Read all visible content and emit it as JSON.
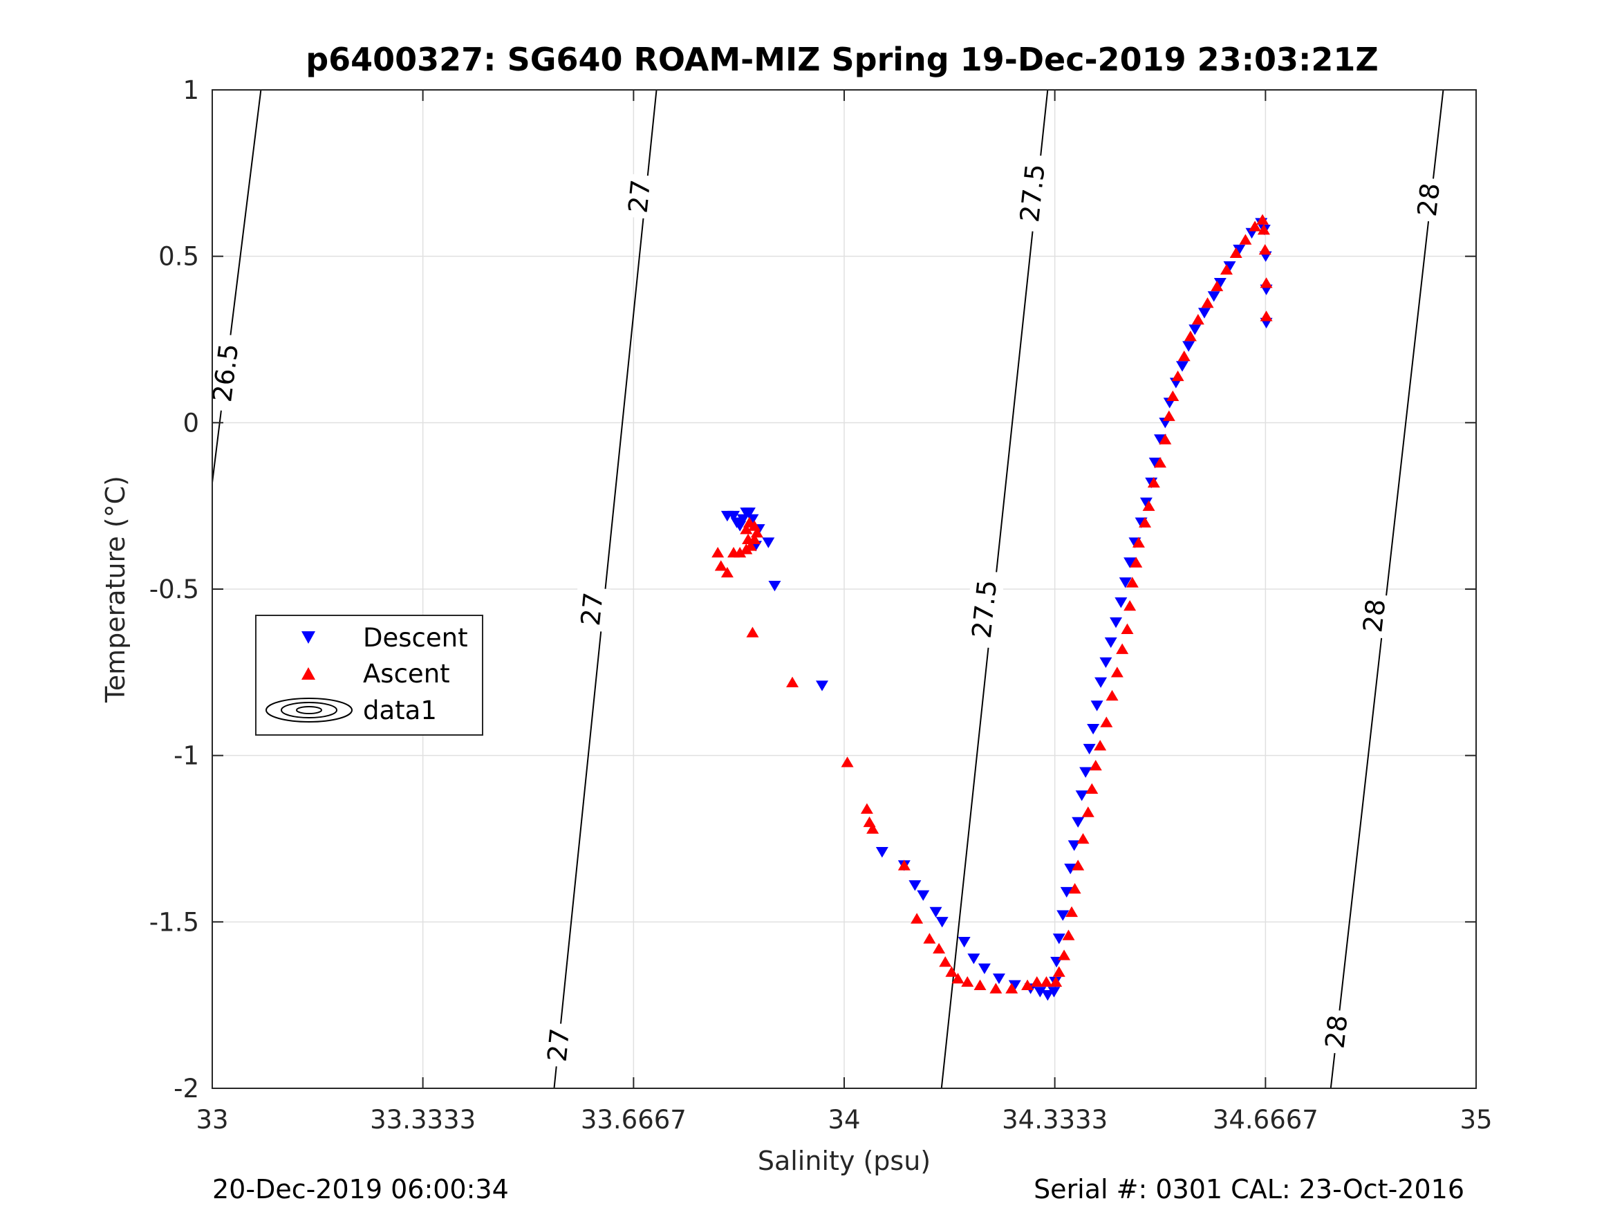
{
  "chart_data": {
    "type": "scatter",
    "title": "p6400327: SG640 ROAM-MIZ Spring 19-Dec-2019 23:03:21Z",
    "xlabel": "Salinity (psu)",
    "ylabel": "Temperature (°C)",
    "xlim": [
      33,
      35
    ],
    "ylim": [
      -2,
      1
    ],
    "xticks": [
      33,
      33.3333,
      33.6667,
      34,
      34.3333,
      34.6667,
      35
    ],
    "xtick_labels": [
      "33",
      "33.3333",
      "33.6667",
      "34",
      "34.3333",
      "34.6667",
      "35"
    ],
    "yticks": [
      -2,
      -1.5,
      -1,
      -0.5,
      0,
      0.5,
      1
    ],
    "ytick_labels": [
      "-2",
      "-1.5",
      "-1",
      "-0.5",
      "0",
      "0.5",
      "1"
    ],
    "grid": true,
    "legend_position": "left",
    "colors": {
      "descent": "#0000ff",
      "ascent": "#ff0000",
      "contour": "#000000",
      "grid": "#e0e0e0"
    },
    "series": [
      {
        "name": "Descent",
        "marker": "triangle-down",
        "points": [
          [
            34.668,
            0.3
          ],
          [
            34.668,
            0.4
          ],
          [
            34.667,
            0.5
          ],
          [
            34.665,
            0.58
          ],
          [
            34.66,
            0.6
          ],
          [
            34.645,
            0.57
          ],
          [
            34.625,
            0.52
          ],
          [
            34.61,
            0.47
          ],
          [
            34.595,
            0.42
          ],
          [
            34.585,
            0.38
          ],
          [
            34.57,
            0.33
          ],
          [
            34.555,
            0.28
          ],
          [
            34.545,
            0.23
          ],
          [
            34.535,
            0.17
          ],
          [
            34.525,
            0.12
          ],
          [
            34.515,
            0.06
          ],
          [
            34.508,
            0.0
          ],
          [
            34.5,
            -0.05
          ],
          [
            34.492,
            -0.12
          ],
          [
            34.486,
            -0.18
          ],
          [
            34.478,
            -0.24
          ],
          [
            34.47,
            -0.3
          ],
          [
            34.46,
            -0.36
          ],
          [
            34.452,
            -0.42
          ],
          [
            34.445,
            -0.48
          ],
          [
            34.438,
            -0.54
          ],
          [
            34.43,
            -0.6
          ],
          [
            34.422,
            -0.66
          ],
          [
            34.414,
            -0.72
          ],
          [
            34.406,
            -0.78
          ],
          [
            34.4,
            -0.85
          ],
          [
            34.394,
            -0.92
          ],
          [
            34.388,
            -0.98
          ],
          [
            34.382,
            -1.05
          ],
          [
            34.376,
            -1.12
          ],
          [
            34.37,
            -1.2
          ],
          [
            34.364,
            -1.27
          ],
          [
            34.358,
            -1.34
          ],
          [
            34.352,
            -1.41
          ],
          [
            34.346,
            -1.48
          ],
          [
            34.34,
            -1.55
          ],
          [
            34.336,
            -1.62
          ],
          [
            34.334,
            -1.68
          ],
          [
            34.332,
            -1.71
          ],
          [
            34.322,
            -1.72
          ],
          [
            34.31,
            -1.71
          ],
          [
            34.295,
            -1.7
          ],
          [
            34.27,
            -1.69
          ],
          [
            34.245,
            -1.67
          ],
          [
            34.222,
            -1.64
          ],
          [
            34.205,
            -1.61
          ],
          [
            34.19,
            -1.56
          ],
          [
            34.155,
            -1.5
          ],
          [
            34.145,
            -1.47
          ],
          [
            34.125,
            -1.42
          ],
          [
            34.112,
            -1.39
          ],
          [
            34.095,
            -1.33
          ],
          [
            34.06,
            -1.29
          ],
          [
            33.965,
            -0.79
          ],
          [
            33.89,
            -0.49
          ],
          [
            33.88,
            -0.36
          ],
          [
            33.865,
            -0.32
          ],
          [
            33.855,
            -0.29
          ],
          [
            33.85,
            -0.27
          ],
          [
            33.845,
            -0.27
          ],
          [
            33.84,
            -0.29
          ],
          [
            33.835,
            -0.31
          ],
          [
            33.83,
            -0.3
          ],
          [
            33.825,
            -0.28
          ],
          [
            33.815,
            -0.28
          ],
          [
            33.86,
            -0.37
          ]
        ]
      },
      {
        "name": "Ascent",
        "marker": "triangle-up",
        "points": [
          [
            34.668,
            0.32
          ],
          [
            34.668,
            0.42
          ],
          [
            34.666,
            0.52
          ],
          [
            34.664,
            0.58
          ],
          [
            34.662,
            0.61
          ],
          [
            34.65,
            0.59
          ],
          [
            34.635,
            0.55
          ],
          [
            34.62,
            0.51
          ],
          [
            34.605,
            0.46
          ],
          [
            34.59,
            0.41
          ],
          [
            34.575,
            0.36
          ],
          [
            34.56,
            0.31
          ],
          [
            34.548,
            0.26
          ],
          [
            34.538,
            0.2
          ],
          [
            34.528,
            0.14
          ],
          [
            34.52,
            0.08
          ],
          [
            34.514,
            0.02
          ],
          [
            34.508,
            -0.05
          ],
          [
            34.5,
            -0.12
          ],
          [
            34.49,
            -0.18
          ],
          [
            34.482,
            -0.25
          ],
          [
            34.476,
            -0.3
          ],
          [
            34.466,
            -0.36
          ],
          [
            34.462,
            -0.42
          ],
          [
            34.456,
            -0.48
          ],
          [
            34.452,
            -0.55
          ],
          [
            34.448,
            -0.62
          ],
          [
            34.44,
            -0.68
          ],
          [
            34.432,
            -0.75
          ],
          [
            34.424,
            -0.82
          ],
          [
            34.415,
            -0.9
          ],
          [
            34.405,
            -0.97
          ],
          [
            34.398,
            -1.03
          ],
          [
            34.392,
            -1.1
          ],
          [
            34.386,
            -1.17
          ],
          [
            34.378,
            -1.25
          ],
          [
            34.37,
            -1.33
          ],
          [
            34.365,
            -1.4
          ],
          [
            34.36,
            -1.47
          ],
          [
            34.355,
            -1.54
          ],
          [
            34.348,
            -1.6
          ],
          [
            34.34,
            -1.65
          ],
          [
            34.335,
            -1.68
          ],
          [
            34.32,
            -1.68
          ],
          [
            34.305,
            -1.68
          ],
          [
            34.29,
            -1.69
          ],
          [
            34.265,
            -1.7
          ],
          [
            34.24,
            -1.7
          ],
          [
            34.215,
            -1.69
          ],
          [
            34.195,
            -1.68
          ],
          [
            34.18,
            -1.67
          ],
          [
            34.17,
            -1.65
          ],
          [
            34.16,
            -1.62
          ],
          [
            34.15,
            -1.58
          ],
          [
            34.135,
            -1.55
          ],
          [
            34.115,
            -1.49
          ],
          [
            34.095,
            -1.33
          ],
          [
            34.045,
            -1.22
          ],
          [
            34.04,
            -1.2
          ],
          [
            34.036,
            -1.16
          ],
          [
            34.005,
            -1.02
          ],
          [
            33.918,
            -0.78
          ],
          [
            33.855,
            -0.63
          ],
          [
            33.815,
            -0.45
          ],
          [
            33.805,
            -0.43
          ],
          [
            33.8,
            -0.39
          ],
          [
            33.825,
            -0.39
          ],
          [
            33.835,
            -0.39
          ],
          [
            33.845,
            -0.38
          ],
          [
            33.852,
            -0.37
          ],
          [
            33.858,
            -0.35
          ],
          [
            33.862,
            -0.33
          ],
          [
            33.858,
            -0.31
          ],
          [
            33.85,
            -0.3
          ],
          [
            33.845,
            -0.32
          ],
          [
            33.848,
            -0.35
          ]
        ]
      },
      {
        "name": "data1",
        "marker": "contour",
        "isopycnals": [
          {
            "label": "26.5",
            "points": [
              [
                33.0,
                -0.18
              ],
              [
                33.077,
                1.0
              ]
            ]
          },
          {
            "label": "27",
            "points": [
              [
                33.541,
                -2.0
              ],
              [
                33.703,
                1.0
              ]
            ]
          },
          {
            "label": "27.5",
            "points": [
              [
                34.154,
                -2.0
              ],
              [
                34.322,
                1.0
              ]
            ]
          },
          {
            "label": "28",
            "points": [
              [
                34.77,
                -2.0
              ],
              [
                34.948,
                1.0
              ]
            ]
          }
        ],
        "contour_label_positions": [
          {
            "label": "26.5",
            "at": [
              33.021,
              0.15
            ]
          },
          {
            "label": "27",
            "at": [
              33.676,
              0.68
            ]
          },
          {
            "label": "27",
            "at": [
              33.601,
              -0.56
            ]
          },
          {
            "label": "27",
            "at": [
              33.548,
              -1.87
            ]
          },
          {
            "label": "27.5",
            "at": [
              34.298,
              0.69
            ]
          },
          {
            "label": "27.5",
            "at": [
              34.222,
              -0.56
            ]
          },
          {
            "label": "28",
            "at": [
              34.925,
              0.67
            ]
          },
          {
            "label": "28",
            "at": [
              34.839,
              -0.58
            ]
          },
          {
            "label": "28",
            "at": [
              34.779,
              -1.83
            ]
          }
        ]
      }
    ]
  },
  "footer": {
    "left": "20-Dec-2019 06:00:34",
    "right": "Serial #: 0301  CAL: 23-Oct-2016"
  }
}
